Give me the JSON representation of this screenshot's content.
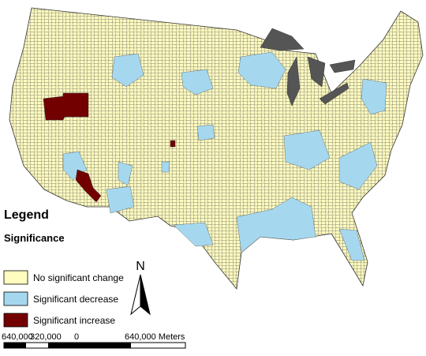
{
  "legend": {
    "title": "Legend",
    "subtitle": "Significance",
    "items": [
      {
        "label": "No significant change",
        "color": "#fffcc0"
      },
      {
        "label": "Significant decrease",
        "color": "#a5d8ee"
      },
      {
        "label": "Significant increase",
        "color": "#730000"
      }
    ]
  },
  "north_arrow": {
    "label": "N"
  },
  "scale_bar": {
    "labels": [
      "640,000",
      "320,000",
      "0",
      "640,000 Meters"
    ]
  }
}
